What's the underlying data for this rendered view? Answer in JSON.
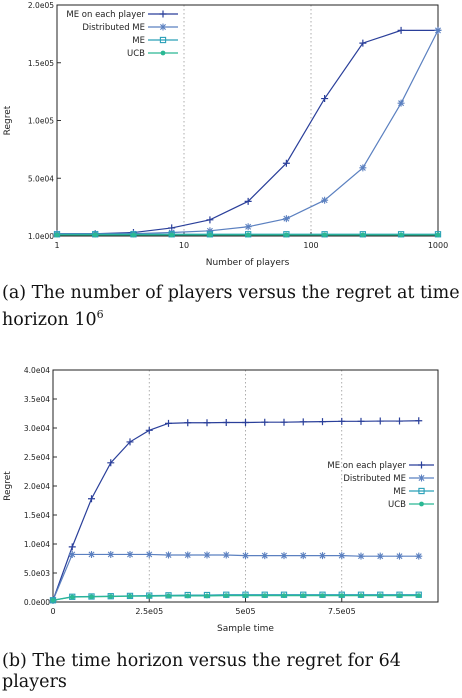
{
  "captions": {
    "a": {
      "text": "(a) The number of players versus the regret at time horizon 10",
      "sup": "6"
    },
    "b": {
      "text": "(b) The time horizon versus the regret for 64 players"
    }
  },
  "colors": {
    "me_each": "#2a3f9a",
    "distributed": "#5b80c0",
    "me": "#2aa0b8",
    "ucb": "#2ab894"
  },
  "chart_data": [
    {
      "type": "line",
      "xlabel": "Number of players",
      "ylabel": "Regret",
      "xscale": "log",
      "xlim": [
        1,
        1000
      ],
      "ylim": [
        0,
        200000
      ],
      "x_tick_labels": [
        "1",
        "10",
        "100",
        "1000"
      ],
      "y_tick_labels": [
        "1.0e00",
        "5.0e04",
        "1.0e05",
        "1.5e05",
        "2.0e05"
      ],
      "legend_position": "top-left",
      "grid": "vertical dotted",
      "x": [
        1,
        2,
        4,
        8,
        16,
        32,
        64,
        128,
        256,
        512,
        1000
      ],
      "series": [
        {
          "name": "ME on each player",
          "marker": "plus",
          "values": [
            2000,
            2000,
            3000,
            7000,
            14000,
            30000,
            63000,
            119000,
            167000,
            178000,
            178000
          ]
        },
        {
          "name": "Distributed ME",
          "marker": "star",
          "values": [
            2000,
            2000,
            2000,
            3000,
            4500,
            8000,
            15000,
            31000,
            59000,
            115000,
            178000
          ]
        },
        {
          "name": "ME",
          "marker": "square",
          "values": [
            1500,
            1500,
            1500,
            1500,
            1500,
            1500,
            1500,
            1500,
            1500,
            1500,
            1500
          ]
        },
        {
          "name": "UCB",
          "marker": "dot",
          "values": [
            1000,
            1000,
            1000,
            1000,
            1000,
            1000,
            1000,
            1000,
            1000,
            1000,
            1000
          ]
        }
      ]
    },
    {
      "type": "line",
      "xlabel": "Sample time",
      "ylabel": "Regret",
      "xlim": [
        0,
        1000000
      ],
      "ylim": [
        0,
        40000
      ],
      "x_ticks": [
        0,
        250000,
        500000,
        750000
      ],
      "x_tick_labels": [
        "0",
        "2.5e05",
        "5e05",
        "7.5e05"
      ],
      "y_tick_labels": [
        "0.0e00",
        "5.0e03",
        "1.0e04",
        "1.5e04",
        "2.0e04",
        "2.5e04",
        "3.0e04",
        "3.5e04",
        "4.0e04"
      ],
      "legend_position": "right",
      "grid": "vertical dotted",
      "x": [
        0,
        50000,
        100000,
        150000,
        200000,
        250000,
        300000,
        350000,
        400000,
        450000,
        500000,
        550000,
        600000,
        650000,
        700000,
        750000,
        800000,
        850000,
        900000,
        950000
      ],
      "series": [
        {
          "name": "ME on each player",
          "marker": "plus",
          "values": [
            300,
            9500,
            17800,
            24000,
            27600,
            29600,
            30800,
            30900,
            30900,
            30950,
            30950,
            31000,
            31000,
            31050,
            31100,
            31150,
            31150,
            31200,
            31200,
            31250
          ]
        },
        {
          "name": "Distributed ME",
          "marker": "star",
          "values": [
            300,
            8200,
            8200,
            8200,
            8200,
            8200,
            8100,
            8100,
            8100,
            8100,
            8000,
            8000,
            8000,
            8000,
            8000,
            8000,
            7900,
            7900,
            7900,
            7900
          ]
        },
        {
          "name": "ME",
          "marker": "square",
          "values": [
            300,
            900,
            950,
            1000,
            1050,
            1100,
            1150,
            1200,
            1200,
            1250,
            1250,
            1250,
            1250,
            1250,
            1250,
            1250,
            1250,
            1250,
            1250,
            1250
          ]
        },
        {
          "name": "UCB",
          "marker": "dot",
          "values": [
            300,
            850,
            900,
            950,
            1000,
            1000,
            1050,
            1050,
            1050,
            1100,
            1100,
            1100,
            1100,
            1100,
            1100,
            1100,
            1100,
            1100,
            1100,
            1100
          ]
        }
      ]
    }
  ]
}
